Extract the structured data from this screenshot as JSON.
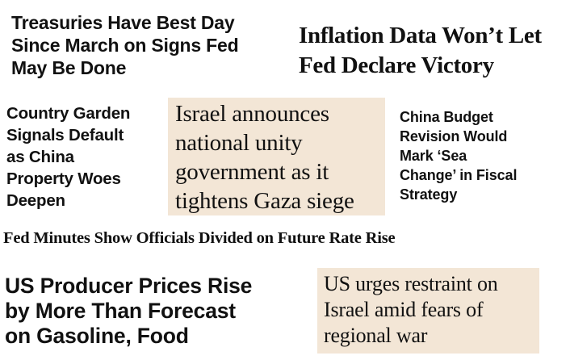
{
  "headlines": {
    "treasuries": "Treasuries Have Best Day\nSince March on Signs Fed\nMay Be Done",
    "inflation": "Inflation Data Won’t Let\nFed Declare Victory",
    "country_garden": "Country Garden\nSignals Default\nas China\nProperty Woes\nDeepen",
    "israel_unity": "Israel announces\nnational unity\ngovernment as it\ntightens Gaza siege",
    "china_budget": "China Budget\nRevision Would\nMark ‘Sea\nChange’ in Fiscal\nStrategy",
    "fed_minutes": "Fed Minutes Show Officials Divided on Future Rate Rise",
    "producer_prices": "US Producer Prices Rise\nby More Than Forecast\non Gasoline, Food",
    "us_restraint": "US urges restraint on\nIsrael amid fears of\nregional war"
  },
  "colors": {
    "tinted_box": "#f3e6d6",
    "text": "#111111",
    "background": "#ffffff"
  }
}
